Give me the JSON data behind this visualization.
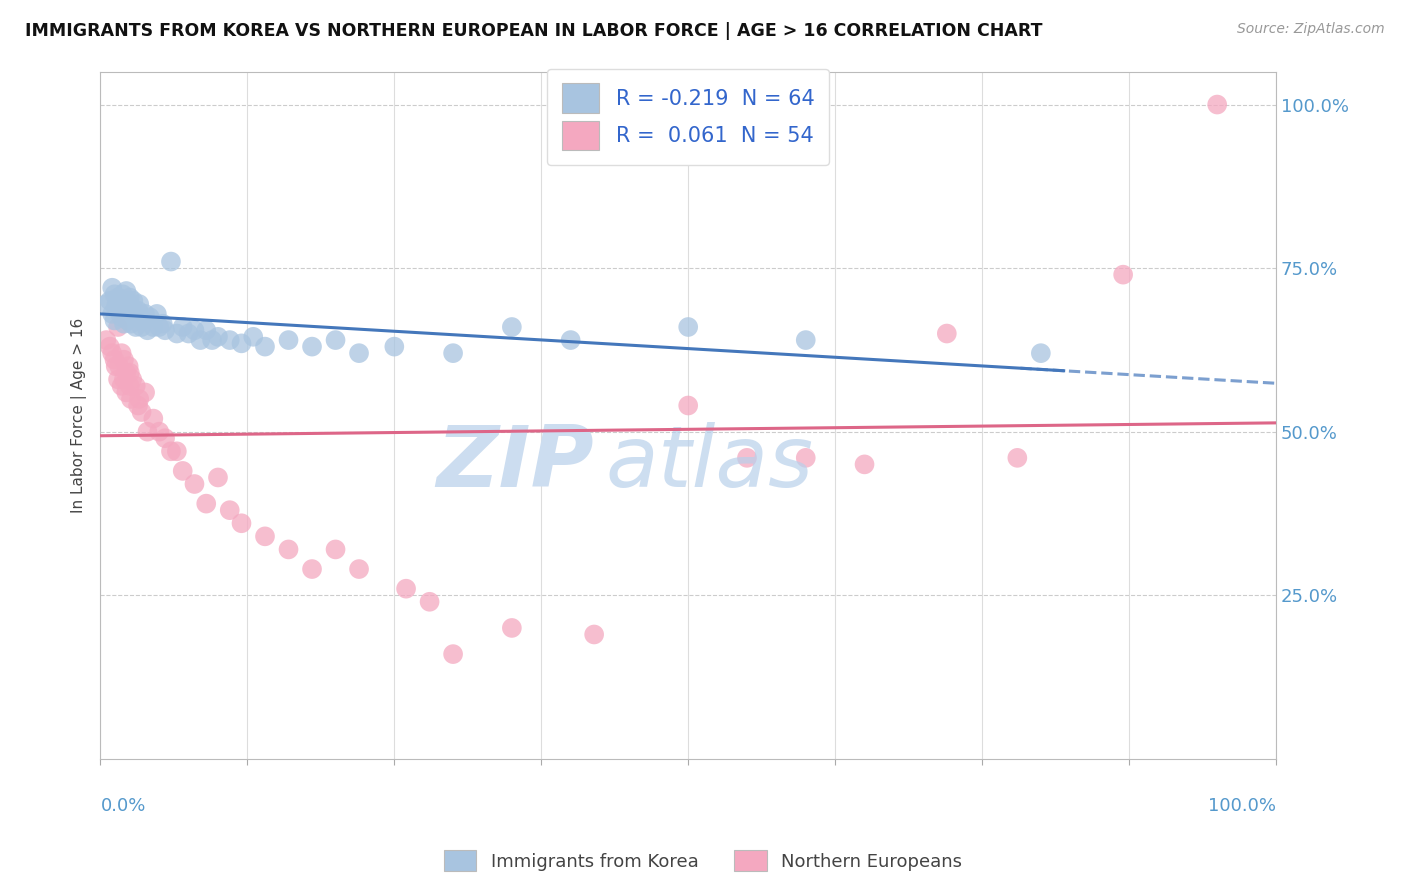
{
  "title": "IMMIGRANTS FROM KOREA VS NORTHERN EUROPEAN IN LABOR FORCE | AGE > 16 CORRELATION CHART",
  "source": "Source: ZipAtlas.com",
  "ylabel": "In Labor Force | Age > 16",
  "ytick_labels": [
    "25.0%",
    "50.0%",
    "75.0%",
    "100.0%"
  ],
  "ytick_values": [
    0.25,
    0.5,
    0.75,
    1.0
  ],
  "legend_korea": "R = -0.219  N = 64",
  "legend_northern": "R =  0.061  N = 54",
  "legend_bottom_korea": "Immigrants from Korea",
  "legend_bottom_northern": "Northern Europeans",
  "korea_color": "#a8c4e0",
  "northern_color": "#f4a8c0",
  "korea_line_color": "#4477bb",
  "northern_line_color": "#dd6688",
  "watermark_color": "#d0e4f7",
  "bg_color": "#ffffff",
  "grid_color": "#dddddd",
  "xlim": [
    0.0,
    1.0
  ],
  "ylim": [
    0.0,
    1.05
  ],
  "korea_scatter_x": [
    0.005,
    0.008,
    0.01,
    0.01,
    0.012,
    0.012,
    0.013,
    0.014,
    0.015,
    0.015,
    0.016,
    0.018,
    0.018,
    0.019,
    0.02,
    0.02,
    0.021,
    0.022,
    0.022,
    0.023,
    0.024,
    0.025,
    0.025,
    0.026,
    0.027,
    0.028,
    0.03,
    0.03,
    0.032,
    0.033,
    0.035,
    0.036,
    0.038,
    0.04,
    0.042,
    0.045,
    0.048,
    0.05,
    0.053,
    0.055,
    0.06,
    0.065,
    0.07,
    0.075,
    0.08,
    0.085,
    0.09,
    0.095,
    0.1,
    0.11,
    0.12,
    0.13,
    0.14,
    0.16,
    0.18,
    0.2,
    0.22,
    0.25,
    0.3,
    0.35,
    0.4,
    0.5,
    0.6,
    0.8
  ],
  "korea_scatter_y": [
    0.695,
    0.7,
    0.68,
    0.72,
    0.67,
    0.71,
    0.69,
    0.695,
    0.685,
    0.705,
    0.7,
    0.675,
    0.695,
    0.71,
    0.665,
    0.69,
    0.68,
    0.7,
    0.715,
    0.67,
    0.685,
    0.695,
    0.705,
    0.665,
    0.68,
    0.7,
    0.66,
    0.675,
    0.685,
    0.695,
    0.66,
    0.67,
    0.68,
    0.655,
    0.675,
    0.66,
    0.68,
    0.66,
    0.665,
    0.655,
    0.76,
    0.65,
    0.66,
    0.65,
    0.655,
    0.64,
    0.655,
    0.64,
    0.645,
    0.64,
    0.635,
    0.645,
    0.63,
    0.64,
    0.63,
    0.64,
    0.62,
    0.63,
    0.62,
    0.66,
    0.64,
    0.66,
    0.64,
    0.62
  ],
  "northern_scatter_x": [
    0.005,
    0.008,
    0.01,
    0.012,
    0.013,
    0.015,
    0.015,
    0.016,
    0.018,
    0.018,
    0.02,
    0.02,
    0.022,
    0.022,
    0.024,
    0.025,
    0.025,
    0.026,
    0.027,
    0.03,
    0.032,
    0.033,
    0.035,
    0.038,
    0.04,
    0.045,
    0.05,
    0.055,
    0.06,
    0.065,
    0.07,
    0.08,
    0.09,
    0.1,
    0.11,
    0.12,
    0.14,
    0.16,
    0.18,
    0.2,
    0.22,
    0.26,
    0.28,
    0.3,
    0.35,
    0.42,
    0.5,
    0.55,
    0.6,
    0.65,
    0.72,
    0.78,
    0.87,
    0.95
  ],
  "northern_scatter_y": [
    0.64,
    0.63,
    0.62,
    0.61,
    0.6,
    0.58,
    0.66,
    0.6,
    0.57,
    0.62,
    0.58,
    0.61,
    0.56,
    0.59,
    0.6,
    0.57,
    0.59,
    0.55,
    0.58,
    0.57,
    0.54,
    0.55,
    0.53,
    0.56,
    0.5,
    0.52,
    0.5,
    0.49,
    0.47,
    0.47,
    0.44,
    0.42,
    0.39,
    0.43,
    0.38,
    0.36,
    0.34,
    0.32,
    0.29,
    0.32,
    0.29,
    0.26,
    0.24,
    0.16,
    0.2,
    0.19,
    0.54,
    0.46,
    0.46,
    0.45,
    0.65,
    0.46,
    0.74,
    1.0
  ]
}
